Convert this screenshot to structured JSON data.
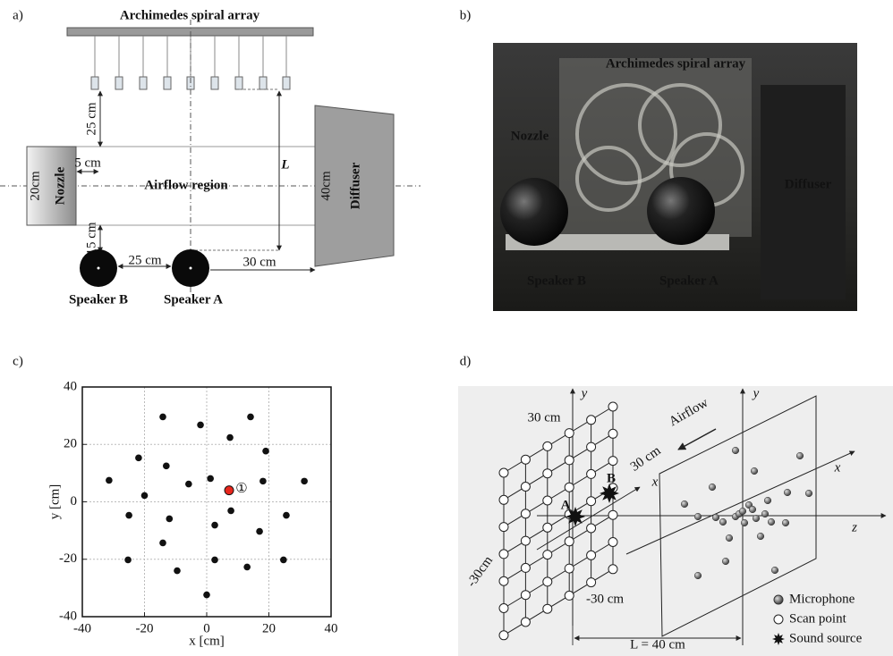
{
  "panel_labels": [
    "a)",
    "b)",
    "c)",
    "d)"
  ],
  "diagram_a": {
    "array_label": "Archimedes spiral array",
    "nozzle": "Nozzle",
    "diffuser": "Diffuser",
    "airflow_region": "Airflow region",
    "speaker_b": "Speaker B",
    "speaker_a": "Speaker A",
    "dim_top": "25 cm",
    "dim_gap": "5 cm",
    "dim_nozzle": "20cm",
    "dim_bottom": "15 cm",
    "dim_speakers": "25 cm",
    "dim_diffuser_dist": "30 cm",
    "dim_diffuser": "40cm",
    "dim_L": "L"
  },
  "photo_b": {
    "array_label": "Archimedes spiral array",
    "nozzle": "Nozzle",
    "diffuser": "Diffuser",
    "speaker_b": "Speaker B",
    "speaker_a": "Speaker A"
  },
  "chart_data": {
    "type": "scatter",
    "xlabel": "x [cm]",
    "ylabel": "y [cm]",
    "x": [
      -14.1,
      -2,
      7.5,
      14.1,
      19,
      18.1,
      31.4,
      25.6,
      17,
      24.7,
      13,
      2.6,
      0,
      -9.5,
      -14.1,
      -25,
      -25.3,
      -12,
      -5.8,
      -20,
      -21.9,
      -31.4,
      -13,
      7.8,
      2.6,
      1.2
    ],
    "y": [
      29.6,
      26.8,
      22.4,
      29.6,
      17.7,
      7.2,
      7.2,
      -4.7,
      -10.3,
      -20.2,
      -22.7,
      -20.2,
      -32.4,
      -24,
      -14.3,
      -4.7,
      -20.2,
      -5.9,
      6.2,
      2.2,
      15.3,
      7.5,
      12.5,
      -3.1,
      -8.1,
      8.1
    ],
    "color": "#111111",
    "highlight": {
      "x": 7.2,
      "y": 4.0,
      "label": "①",
      "color": "#e8261c"
    },
    "xlim": [
      -40,
      40
    ],
    "ylim": [
      -40,
      40
    ],
    "xticks": [
      -40,
      -20,
      0,
      20,
      40
    ],
    "yticks": [
      -40,
      -20,
      0,
      20,
      40
    ],
    "grid": true
  },
  "diagram_d": {
    "y_left": "y",
    "y_right": "y",
    "x_left": "x",
    "x_right": "x",
    "z": "z",
    "top_30": "30 cm",
    "diag_30": "30 cm",
    "left_neg30": "-30cm",
    "bottom_neg30": "-30 cm",
    "airflow": "Airflow",
    "source_a": "A",
    "source_b": "B",
    "distance": "L = 40 cm",
    "legend": [
      "Microphone",
      "Scan point",
      "Sound source"
    ]
  }
}
